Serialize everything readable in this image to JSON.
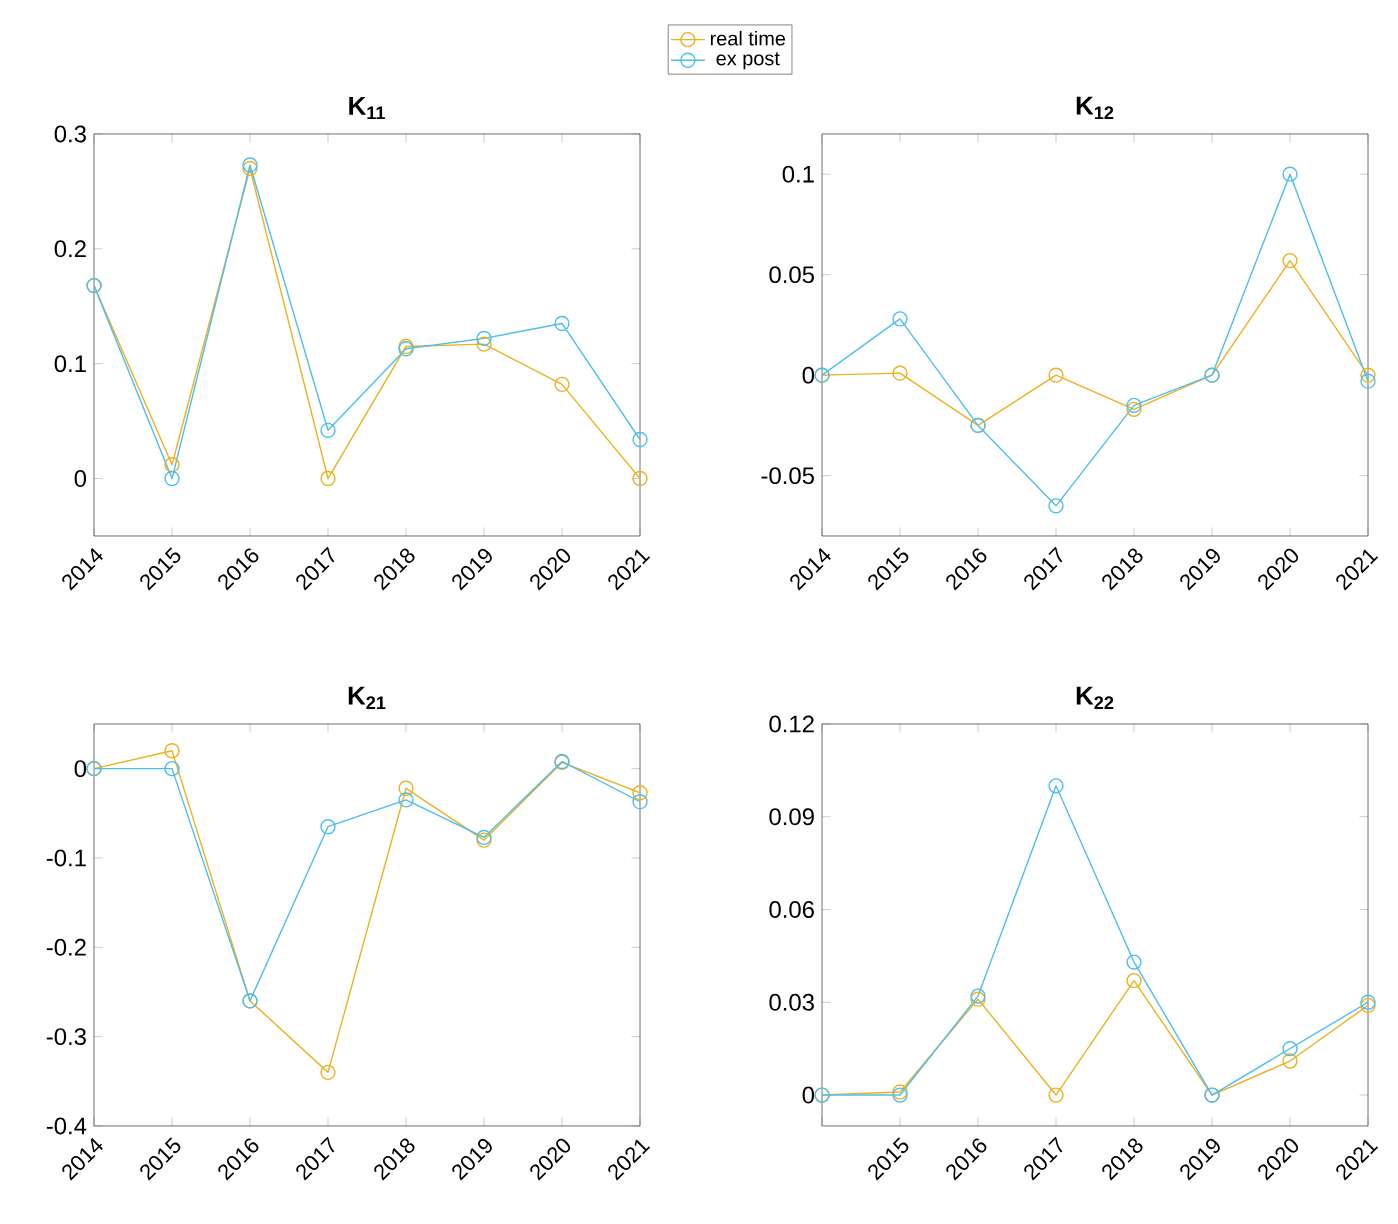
{
  "chart_data": [
    {
      "type": "line",
      "title": "K$_{11}$",
      "x": [
        2014,
        2015,
        2016,
        2017,
        2018,
        2019,
        2020,
        2021
      ],
      "xlim": [
        2014,
        2021
      ],
      "xticks": [
        2014,
        2015,
        2016,
        2017,
        2018,
        2019,
        2020,
        2021
      ],
      "ylim": [
        -0.05,
        0.3
      ],
      "yticks": [
        0,
        0.1,
        0.2,
        0.3
      ],
      "marker": "circle",
      "line_style": "solid",
      "legend": "top right",
      "series": [
        {
          "name": "real time",
          "color": "#edb120",
          "values": [
            0.168,
            0.012,
            0.27,
            0,
            0.115,
            0.117,
            0.082,
            0
          ]
        },
        {
          "name": "ex post",
          "color": "#4dbeee",
          "values": [
            0.168,
            0,
            0.273,
            0.042,
            0.113,
            0.122,
            0.135,
            0.034
          ]
        }
      ]
    },
    {
      "type": "line",
      "title": "K$_{12}$",
      "x": [
        2014,
        2015,
        2016,
        2017,
        2018,
        2019,
        2020,
        2021
      ],
      "xlim": [
        2014,
        2021
      ],
      "xticks": [
        2014,
        2015,
        2016,
        2017,
        2018,
        2019,
        2020,
        2021
      ],
      "ylim": [
        -0.08,
        0.12
      ],
      "yticks": [
        -0.05,
        0,
        0.05,
        0.1
      ],
      "marker": "circle",
      "line_style": "solid",
      "series": [
        {
          "color": "#edb120",
          "values": [
            0,
            0.001,
            -0.025,
            0,
            -0.017,
            0,
            0.057,
            0
          ]
        },
        {
          "color": "#4dbeee",
          "values": [
            0,
            0.028,
            -0.025,
            -0.065,
            -0.015,
            0,
            0.1,
            -0.003
          ]
        }
      ]
    },
    {
      "type": "line",
      "title": "K$_{21}$",
      "x": [
        2014,
        2015,
        2016,
        2017,
        2018,
        2019,
        2020,
        2021
      ],
      "xlim": [
        2014,
        2021
      ],
      "xticks": [
        2014,
        2015,
        2016,
        2017,
        2018,
        2019,
        2020,
        2021
      ],
      "ylim": [
        -0.4,
        0.05
      ],
      "yticks": [
        -0.4,
        -0.3,
        -0.2,
        -0.1,
        0
      ],
      "marker": "circle",
      "line_style": "solid",
      "series": [
        {
          "color": "#edb120",
          "values": [
            0,
            0.02,
            -0.26,
            -0.34,
            -0.022,
            -0.08,
            0.007,
            -0.027
          ]
        },
        {
          "color": "#4dbeee",
          "values": [
            0,
            0,
            -0.26,
            -0.065,
            -0.035,
            -0.077,
            0.008,
            -0.037
          ]
        }
      ]
    },
    {
      "type": "line",
      "title": "K$_{22}$",
      "x": [
        2014,
        2015,
        2016,
        2017,
        2018,
        2019,
        2020,
        2021
      ],
      "xlim": [
        2014,
        2021
      ],
      "xticks": [
        {
          "value": 2014,
          "label": null
        },
        2015,
        2016,
        2017,
        2018,
        2019,
        2020,
        2021
      ],
      "ylim": [
        -0.01,
        0.12
      ],
      "yticks": [
        0,
        0.03,
        0.06,
        0.09,
        0.12
      ],
      "marker": "circle",
      "line_style": "solid",
      "series": [
        {
          "color": "#edb120",
          "values": [
            0,
            0.001,
            0.031,
            0,
            0.037,
            0,
            0.011,
            0.029
          ]
        },
        {
          "color": "#4dbeee",
          "values": [
            0,
            0,
            0.032,
            0.1,
            0.043,
            0,
            0.015,
            0.03
          ]
        }
      ]
    }
  ]
}
